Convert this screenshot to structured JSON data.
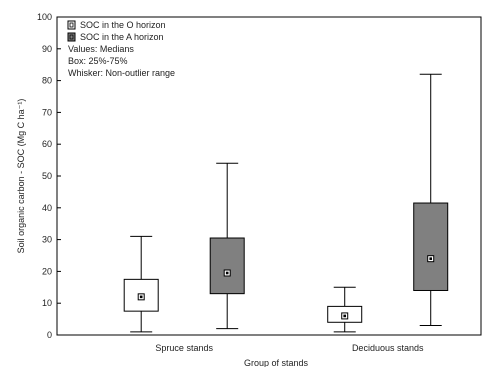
{
  "chart_data": {
    "type": "boxplot",
    "ylabel": "Soil organic carbon - SOC (Mg C ha⁻¹)",
    "xlabel": "Group of stands",
    "ylim": [
      0,
      100
    ],
    "yticks": [
      0,
      10,
      20,
      30,
      40,
      50,
      60,
      70,
      80,
      90,
      100
    ],
    "categories": [
      "Spruce stands",
      "Deciduous stands"
    ],
    "legend": {
      "position": "top-left",
      "entries": [
        "SOC in the O horizon",
        "SOC in the A horizon"
      ],
      "notes": [
        "Values: Medians",
        "Box: 25%-75%",
        "Whisker: Non-outlier range"
      ]
    },
    "series": [
      {
        "name": "SOC in the O horizon",
        "color": "#ffffff",
        "boxes": [
          {
            "min": 1,
            "q1": 7.5,
            "median": 12,
            "q3": 17.5,
            "max": 31
          },
          {
            "min": 1,
            "q1": 4,
            "median": 6,
            "q3": 9,
            "max": 15
          }
        ]
      },
      {
        "name": "SOC in the A horizon",
        "color": "#808080",
        "boxes": [
          {
            "min": 2,
            "q1": 13,
            "median": 19.5,
            "q3": 30.5,
            "max": 54
          },
          {
            "min": 3,
            "q1": 14,
            "median": 24,
            "q3": 41.5,
            "max": 82
          }
        ]
      }
    ]
  }
}
